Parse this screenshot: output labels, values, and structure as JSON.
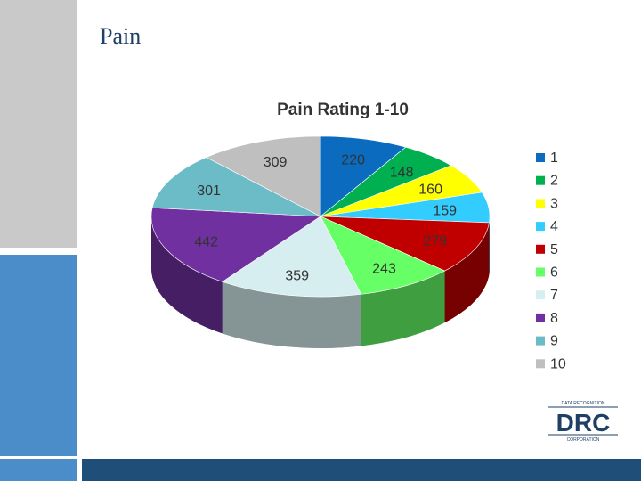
{
  "slide": {
    "title": "Pain"
  },
  "logo": {
    "top_text": "DATA RECOGNITION",
    "main_text": "DRC",
    "bottom_text": "CORPORATION",
    "color": "#1f3f66"
  },
  "chart_data": {
    "type": "pie",
    "title": "Pain Rating 1-10",
    "legend_position": "right",
    "categories": [
      "1",
      "2",
      "3",
      "4",
      "5",
      "6",
      "7",
      "8",
      "9",
      "10"
    ],
    "values": [
      220,
      148,
      160,
      159,
      279,
      243,
      359,
      442,
      301,
      309
    ],
    "colors": [
      "#0a6bbf",
      "#00b050",
      "#ffff00",
      "#33ccff",
      "#c00000",
      "#66ff66",
      "#d6eef0",
      "#7030a0",
      "#6cbcc8",
      "#bfbfbf"
    ]
  }
}
